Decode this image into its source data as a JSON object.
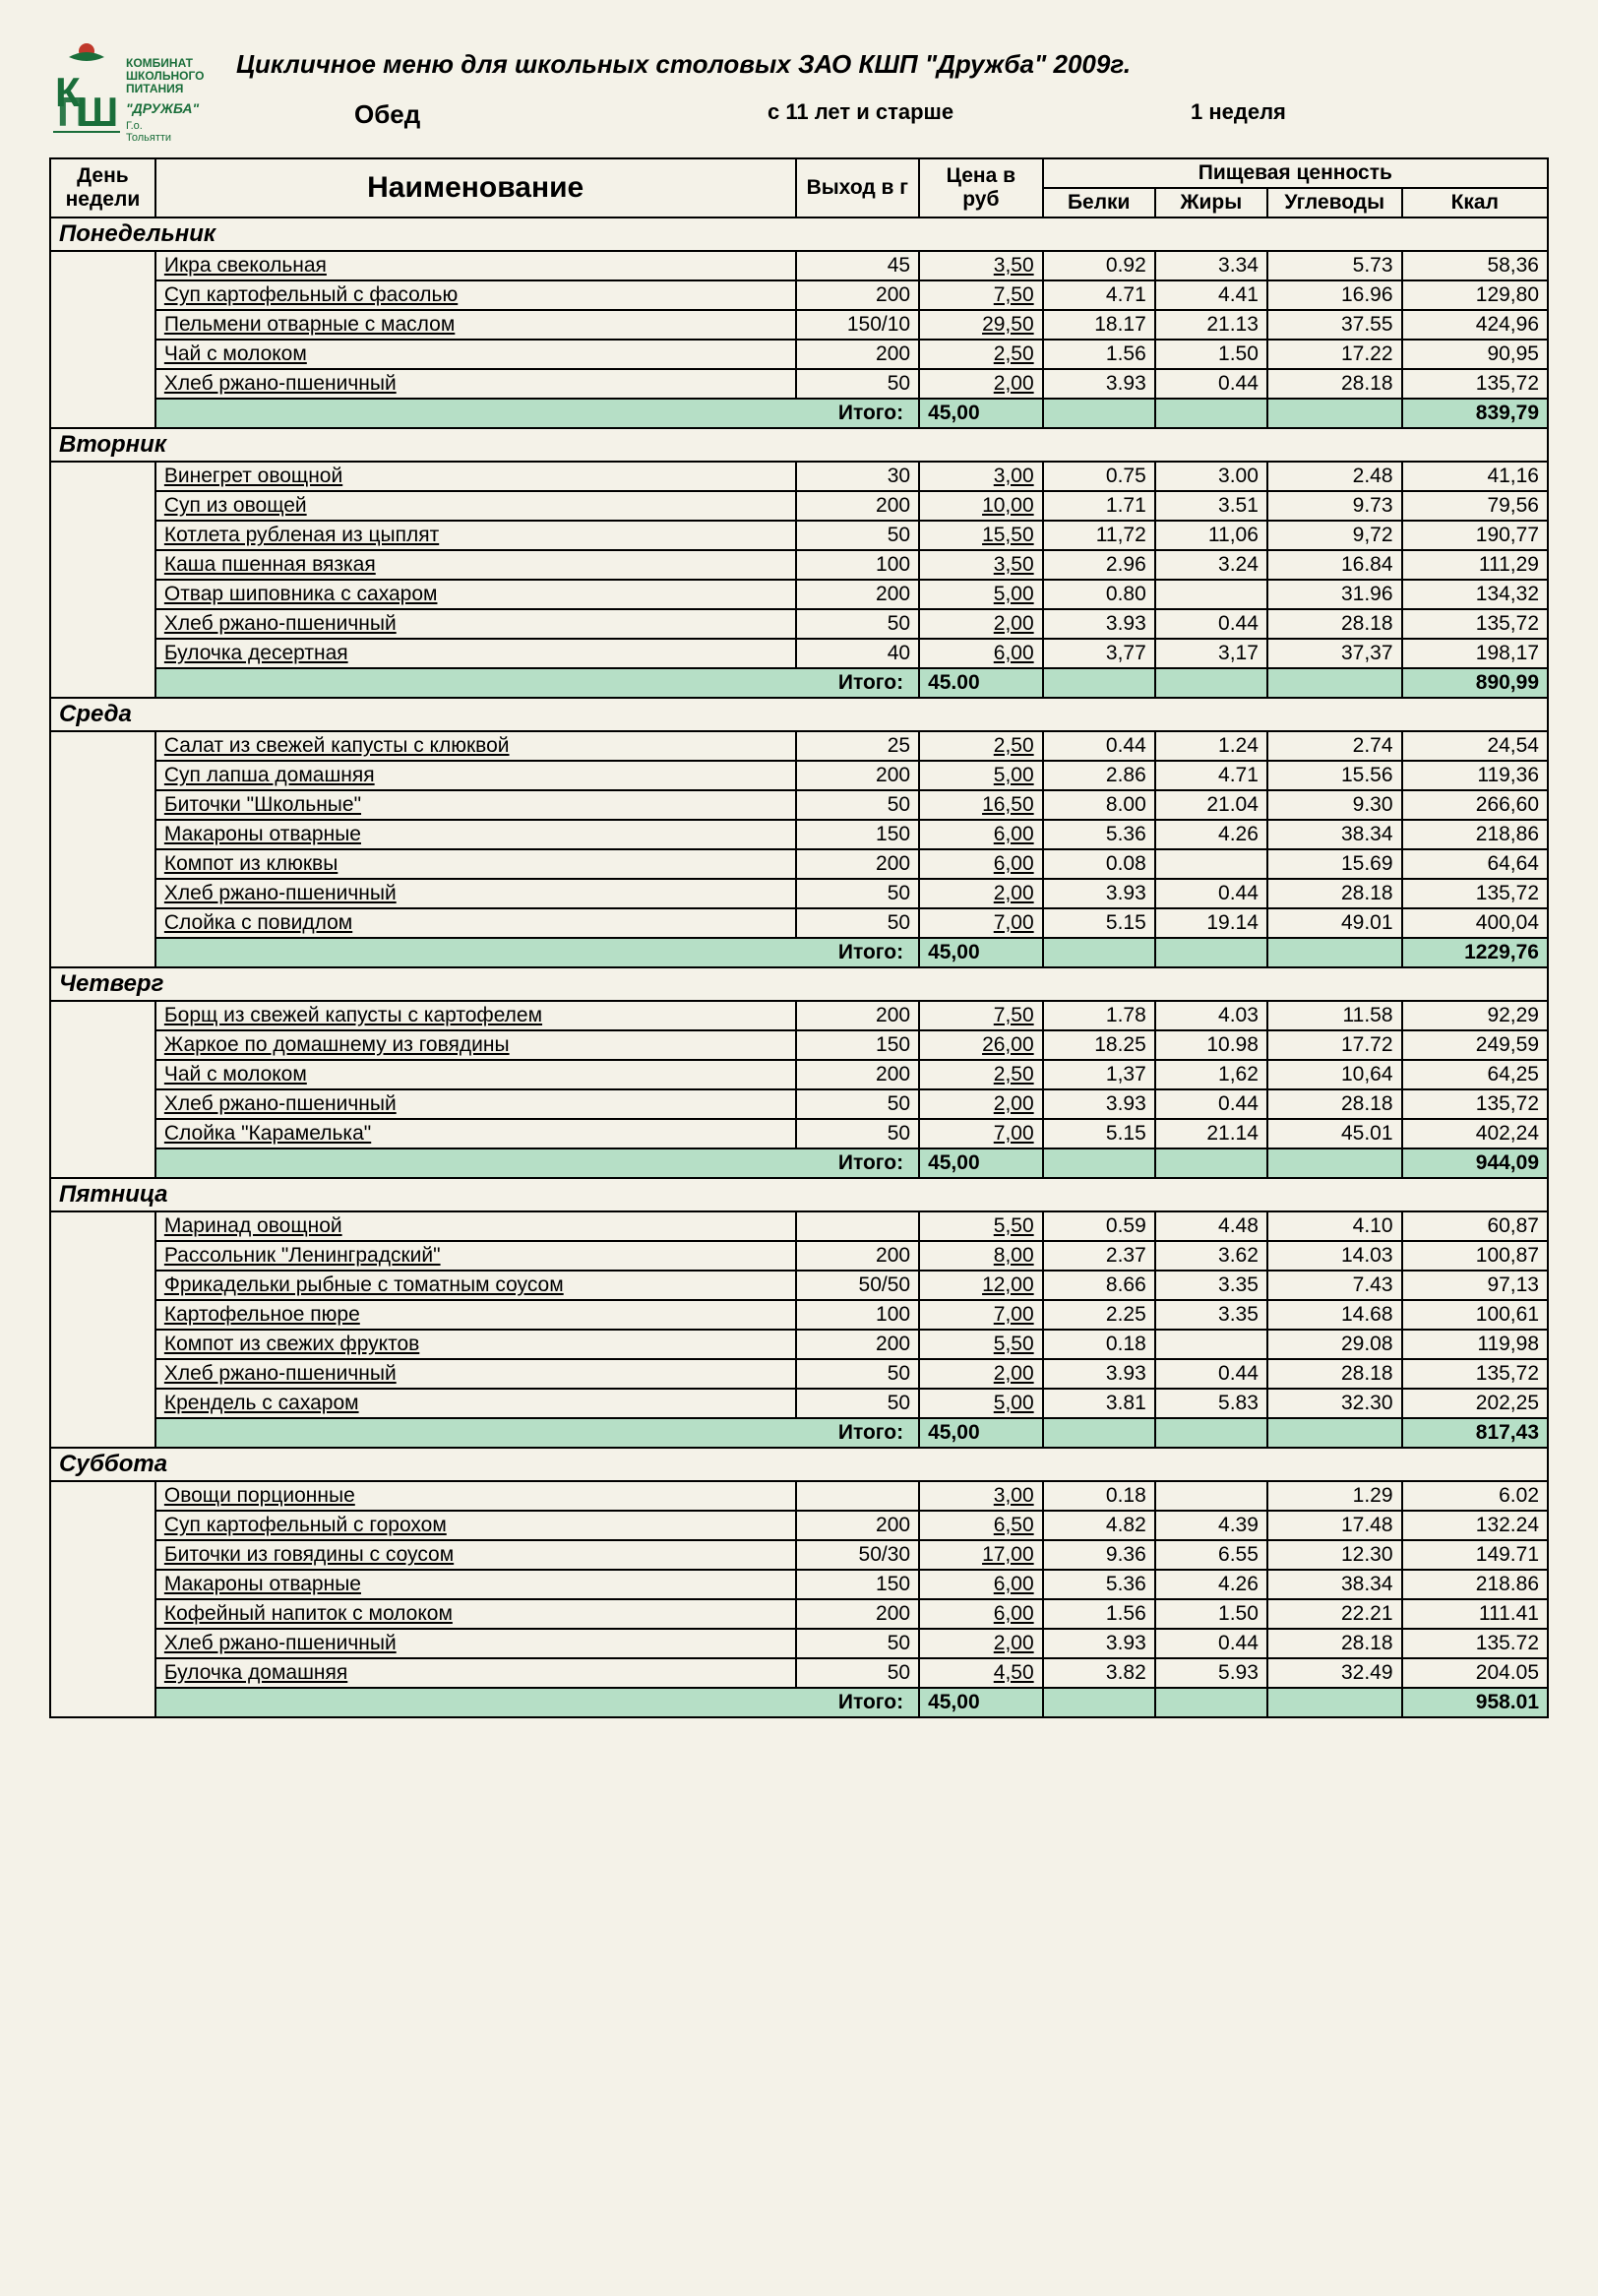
{
  "logo": {
    "line1": "КОМБИНАТ",
    "line2": "ШКОЛЬНОГО",
    "line3": "ПИТАНИЯ",
    "brand": "\"ДРУЖБА\"",
    "city": "Г.о. Тольятти"
  },
  "title": "Цикличное меню для школьных столовых ЗАО КШП \"Дружба\" 2009г.",
  "meal": "Обед",
  "age": "с 11 лет и старше",
  "week": "1 неделя",
  "headers": {
    "day": "День недели",
    "name": "Наименование",
    "out": "Выход в г",
    "price": "Цена в руб",
    "nutri": "Пищевая ценность",
    "prot": "Белки",
    "fat": "Жиры",
    "carb": "Углеводы",
    "kcal": "Ккал"
  },
  "totalLabel": "Итого:",
  "colors": {
    "totalBg": "#b6dfc6",
    "border": "#000000",
    "logoGreen": "#1a6e3a",
    "logoRed": "#c0392b"
  },
  "days": [
    {
      "name": "Понедельник",
      "items": [
        {
          "name": "Икра свекольная",
          "out": "45",
          "price": "3,50",
          "prot": "0.92",
          "fat": "3.34",
          "carb": "5.73",
          "kcal": "58,36"
        },
        {
          "name": "Суп картофельный с фасолью",
          "out": "200",
          "price": "7,50",
          "prot": "4.71",
          "fat": "4.41",
          "carb": "16.96",
          "kcal": "129,80"
        },
        {
          "name": "Пельмени отварные с маслом",
          "out": "150/10",
          "price": "29,50",
          "prot": "18.17",
          "fat": "21.13",
          "carb": "37.55",
          "kcal": "424,96"
        },
        {
          "name": "Чай с молоком",
          "out": "200",
          "price": "2,50",
          "prot": "1.56",
          "fat": "1.50",
          "carb": "17.22",
          "kcal": "90,95"
        },
        {
          "name": "Хлеб  ржано-пшеничный",
          "out": "50",
          "price": "2,00",
          "prot": "3.93",
          "fat": "0.44",
          "carb": "28.18",
          "kcal": "135,72"
        }
      ],
      "total": {
        "price": "45,00",
        "kcal": "839,79"
      }
    },
    {
      "name": "Вторник",
      "items": [
        {
          "name": "Винегрет овощной",
          "out": "30",
          "price": "3,00",
          "prot": "0.75",
          "fat": "3.00",
          "carb": "2.48",
          "kcal": "41,16"
        },
        {
          "name": "Суп из овощей",
          "out": "200",
          "price": "10,00",
          "prot": "1.71",
          "fat": "3.51",
          "carb": "9.73",
          "kcal": "79,56"
        },
        {
          "name": "Котлета рубленая из цыплят",
          "out": "50",
          "price": "15,50",
          "prot": "11,72",
          "fat": "11,06",
          "carb": "9,72",
          "kcal": "190,77"
        },
        {
          "name": "Каша пшенная вязкая",
          "out": "100",
          "price": "3,50",
          "prot": "2.96",
          "fat": "3.24",
          "carb": "16.84",
          "kcal": "111,29"
        },
        {
          "name": "Отвар шиповника с сахаром",
          "out": "200",
          "price": "5,00",
          "prot": "0.80",
          "fat": "",
          "carb": "31.96",
          "kcal": "134,32"
        },
        {
          "name": "Хлеб  ржано-пшеничный",
          "out": "50",
          "price": "2,00",
          "prot": "3.93",
          "fat": "0.44",
          "carb": "28.18",
          "kcal": "135,72"
        },
        {
          "name": "Булочка десертная",
          "out": "40",
          "price": "6,00",
          "prot": "3,77",
          "fat": "3,17",
          "carb": "37,37",
          "kcal": "198,17"
        }
      ],
      "total": {
        "price": "45.00",
        "kcal": "890,99"
      }
    },
    {
      "name": "Среда",
      "items": [
        {
          "name": "Салат из свежей капусты с клюквой",
          "out": "25",
          "price": "2,50",
          "prot": "0.44",
          "fat": "1.24",
          "carb": "2.74",
          "kcal": "24,54"
        },
        {
          "name": "Суп лапша домашняя",
          "out": "200",
          "price": "5,00",
          "prot": "2.86",
          "fat": "4.71",
          "carb": "15.56",
          "kcal": "119,36"
        },
        {
          "name": "Биточки \"Школьные\"",
          "out": "50",
          "price": "16,50",
          "prot": "8.00",
          "fat": "21.04",
          "carb": "9.30",
          "kcal": "266,60"
        },
        {
          "name": "Макароны отварные",
          "out": "150",
          "price": "6,00",
          "prot": "5.36",
          "fat": "4.26",
          "carb": "38.34",
          "kcal": "218,86"
        },
        {
          "name": "Компот из клюквы",
          "out": "200",
          "price": "6,00",
          "prot": "0.08",
          "fat": "",
          "carb": "15.69",
          "kcal": "64,64"
        },
        {
          "name": "Хлеб  ржано-пшеничный",
          "out": "50",
          "price": "2,00",
          "prot": "3.93",
          "fat": "0.44",
          "carb": "28.18",
          "kcal": "135,72"
        },
        {
          "name": "Слойка с повидлом",
          "out": "50",
          "price": "7,00",
          "prot": "5.15",
          "fat": "19.14",
          "carb": "49.01",
          "kcal": "400,04"
        }
      ],
      "total": {
        "price": "45,00",
        "kcal": "1229,76"
      }
    },
    {
      "name": "Четверг",
      "items": [
        {
          "name": "Борщ из свежей капусты с картофелем",
          "out": "200",
          "price": "7,50",
          "prot": "1.78",
          "fat": "4.03",
          "carb": "11.58",
          "kcal": "92,29"
        },
        {
          "name": "Жаркое по домашнему из говядины",
          "out": "150",
          "price": "26,00",
          "prot": "18.25",
          "fat": "10.98",
          "carb": "17.72",
          "kcal": "249,59"
        },
        {
          "name": "Чай с  молоком",
          "out": "200",
          "price": "2,50",
          "prot": "1,37",
          "fat": "1,62",
          "carb": "10,64",
          "kcal": "64,25"
        },
        {
          "name": "Хлеб ржано-пшеничный",
          "out": "50",
          "price": "2,00",
          "prot": "3.93",
          "fat": "0.44",
          "carb": "28.18",
          "kcal": "135,72"
        },
        {
          "name": "Слойка \"Карамелька\"",
          "out": "50",
          "price": "7,00",
          "prot": "5.15",
          "fat": "21.14",
          "carb": "45.01",
          "kcal": "402,24"
        }
      ],
      "total": {
        "price": "45,00",
        "kcal": "944,09"
      }
    },
    {
      "name": "Пятница",
      "items": [
        {
          "name": "Маринад овощной",
          "out": "",
          "price": "5,50",
          "prot": "0.59",
          "fat": "4.48",
          "carb": "4.10",
          "kcal": "60,87"
        },
        {
          "name": "Рассольник \"Ленинградский\"",
          "out": "200",
          "price": "8,00",
          "prot": "2.37",
          "fat": "3.62",
          "carb": "14.03",
          "kcal": "100,87"
        },
        {
          "name": "Фрикадельки рыбные с томатным соусом",
          "out": "50/50",
          "price": "12,00",
          "prot": "8.66",
          "fat": "3.35",
          "carb": "7.43",
          "kcal": "97,13"
        },
        {
          "name": "Картофельное пюре",
          "out": "100",
          "price": "7,00",
          "prot": "2.25",
          "fat": "3.35",
          "carb": "14.68",
          "kcal": "100,61"
        },
        {
          "name": "Компот из свежих фруктов",
          "out": "200",
          "price": "5,50",
          "prot": "0.18",
          "fat": "",
          "carb": "29.08",
          "kcal": "119,98"
        },
        {
          "name": "Хлеб ржано-пшеничный",
          "out": "50",
          "price": "2,00",
          "prot": "3.93",
          "fat": "0.44",
          "carb": "28.18",
          "kcal": "135,72"
        },
        {
          "name": "Крендель с сахаром",
          "out": "50",
          "price": "5,00",
          "prot": "3.81",
          "fat": "5.83",
          "carb": "32.30",
          "kcal": "202,25"
        }
      ],
      "total": {
        "price": "45,00",
        "kcal": "817,43"
      }
    },
    {
      "name": "Суббота",
      "items": [
        {
          "name": "Овощи  порционные",
          "out": "",
          "price": "3,00",
          "prot": "0.18",
          "fat": "",
          "carb": "1.29",
          "kcal": "6.02"
        },
        {
          "name": "Суп картофельный с горохом",
          "out": "200",
          "price": "6,50",
          "prot": "4.82",
          "fat": "4.39",
          "carb": "17.48",
          "kcal": "132.24"
        },
        {
          "name": "Биточки из говядины с соусом",
          "out": "50/30",
          "price": "17,00",
          "prot": "9.36",
          "fat": "6.55",
          "carb": "12.30",
          "kcal": "149.71"
        },
        {
          "name": "Макароны отварные",
          "out": "150",
          "price": "6,00",
          "prot": "5.36",
          "fat": "4.26",
          "carb": "38.34",
          "kcal": "218.86"
        },
        {
          "name": "Кофейный напиток с молоком",
          "out": "200",
          "price": "6,00",
          "prot": "1.56",
          "fat": "1.50",
          "carb": "22.21",
          "kcal": "111.41"
        },
        {
          "name": "Хлеб ржано-пшеничный",
          "out": "50",
          "price": "2,00",
          "prot": "3.93",
          "fat": "0.44",
          "carb": "28.18",
          "kcal": "135.72"
        },
        {
          "name": "Булочка домашняя",
          "out": "50",
          "price": "4,50",
          "prot": "3.82",
          "fat": "5.93",
          "carb": "32.49",
          "kcal": "204.05"
        }
      ],
      "total": {
        "price": "45,00",
        "kcal": "958.01"
      }
    }
  ]
}
